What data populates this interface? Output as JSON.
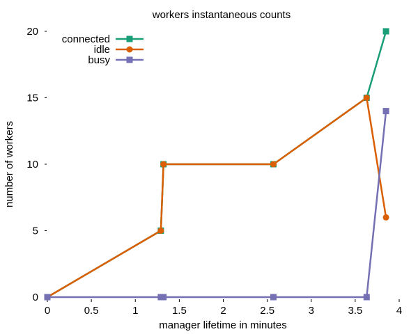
{
  "chart_data": {
    "type": "line",
    "title": "workers instantaneous counts",
    "xlabel": "manager lifetime in minutes",
    "ylabel": "number of workers",
    "xlim": [
      0,
      4
    ],
    "ylim": [
      0,
      20
    ],
    "xticks": [
      0,
      0.5,
      1,
      1.5,
      2,
      2.5,
      3,
      3.5,
      4
    ],
    "xtick_labels": [
      "0",
      "0.5",
      "1",
      "1.5",
      "2",
      "2.5",
      "3",
      "3.5",
      "4"
    ],
    "yticks": [
      0,
      5,
      10,
      15,
      20
    ],
    "ytick_labels": [
      "0",
      "5",
      "10",
      "15",
      "20"
    ],
    "grid": false,
    "legend_position": "top-left",
    "series": [
      {
        "name": "connected",
        "color": "#1a9e77",
        "marker": "square",
        "x": [
          0,
          1.29,
          1.32,
          2.57,
          3.63,
          3.85
        ],
        "y": [
          0,
          5,
          10,
          10,
          15,
          20
        ]
      },
      {
        "name": "idle",
        "color": "#d95f02",
        "marker": "circle",
        "x": [
          0,
          1.29,
          1.32,
          2.57,
          3.63,
          3.85
        ],
        "y": [
          0,
          5,
          10,
          10,
          15,
          6
        ]
      },
      {
        "name": "busy",
        "color": "#7570b3",
        "marker": "square",
        "x": [
          0,
          1.29,
          1.32,
          2.57,
          3.63,
          3.85
        ],
        "y": [
          0,
          0,
          0,
          0,
          0,
          14
        ]
      }
    ]
  }
}
